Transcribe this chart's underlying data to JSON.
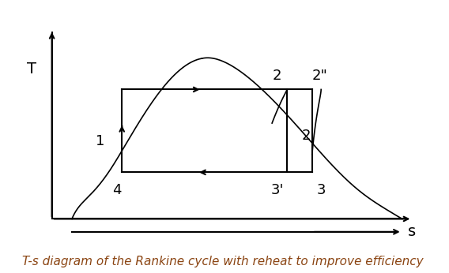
{
  "title": "T-s diagram of the Rankine cycle with reheat to improve efficiency",
  "title_color": "#8B4513",
  "title_fontsize": 11,
  "bg_color": "#ffffff",
  "line_color": "#000000",
  "axis_color": "#000000",
  "label_T": "T",
  "label_s": "s",
  "points": {
    "1": [
      0.22,
      0.38
    ],
    "4": [
      0.22,
      0.28
    ],
    "1top": [
      0.22,
      0.6
    ],
    "2": [
      0.55,
      0.6
    ],
    "2pp": [
      0.6,
      0.6
    ],
    "2p": [
      0.55,
      0.42
    ],
    "3p": [
      0.55,
      0.28
    ],
    "3": [
      0.6,
      0.28
    ]
  },
  "dome_peak": [
    0.38,
    0.72
  ],
  "xlim": [
    0.0,
    0.85
  ],
  "ylim": [
    0.0,
    0.9
  ]
}
